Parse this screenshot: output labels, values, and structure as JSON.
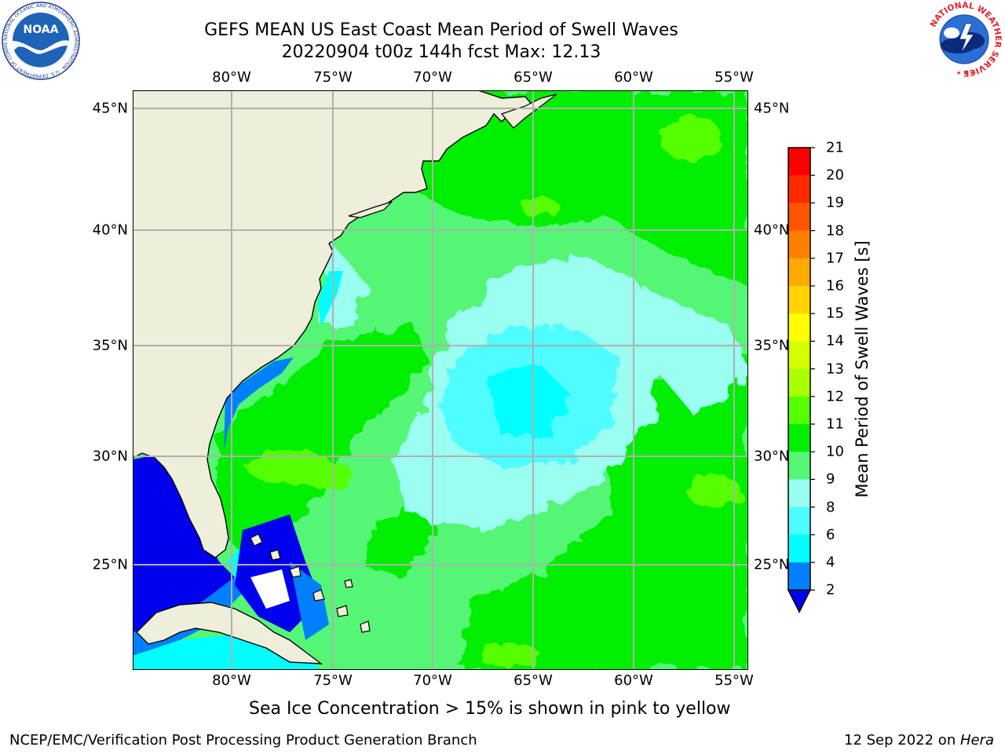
{
  "title_line1": "GEFS MEAN US East Coast Mean Period of Swell Waves",
  "title_line2": "20220904 t00z 144h fcst   Max: 12.13",
  "lon_ticks": [
    "80°W",
    "75°W",
    "70°W",
    "65°W",
    "60°W",
    "55°W"
  ],
  "lat_ticks": [
    "45°N",
    "40°N",
    "35°N",
    "30°N",
    "25°N"
  ],
  "colorbar": {
    "title": "Mean Period of Swell Waves [s]",
    "labels": [
      "21",
      "20",
      "19",
      "18",
      "17",
      "16",
      "15",
      "14",
      "13",
      "12",
      "11",
      "10",
      "9",
      "8",
      "6",
      "4",
      "2"
    ],
    "colors": [
      "#ff0000",
      "#ff2a00",
      "#ff5500",
      "#ff7f00",
      "#ffaa00",
      "#ffd400",
      "#ffff00",
      "#d4ff00",
      "#aaff00",
      "#55ff00",
      "#00ee00",
      "#55f575",
      "#9afff0",
      "#4ffcff",
      "#00ffff",
      "#0080ff",
      "#0000ee"
    ]
  },
  "map_colors": {
    "land": "#efeedb",
    "period_2_4": "#0000ee",
    "period_4_6": "#0080ff",
    "period_6_8": "#00ffff",
    "period_8_9": "#9afff0",
    "period_9_10": "#55f575",
    "period_10_11": "#00ee00",
    "period_11_12": "#55ff00",
    "grid": "#b0b0b0"
  },
  "note": "Sea Ice Concentration > 15% is shown in pink to yellow",
  "footer_left": "NCEP/EMC/Verification Post Processing Product Generation Branch",
  "footer_right_date": "12 Sep 2022 on ",
  "footer_right_host": "Hera",
  "logos": {
    "left": "NOAA",
    "left_ring": "NATIONAL OCEANIC AND ATMOSPHERIC ADMINISTRATION · U.S. DEPARTMENT OF COMMERCE",
    "right_ring": "NATIONAL WEATHER SERVICE"
  }
}
